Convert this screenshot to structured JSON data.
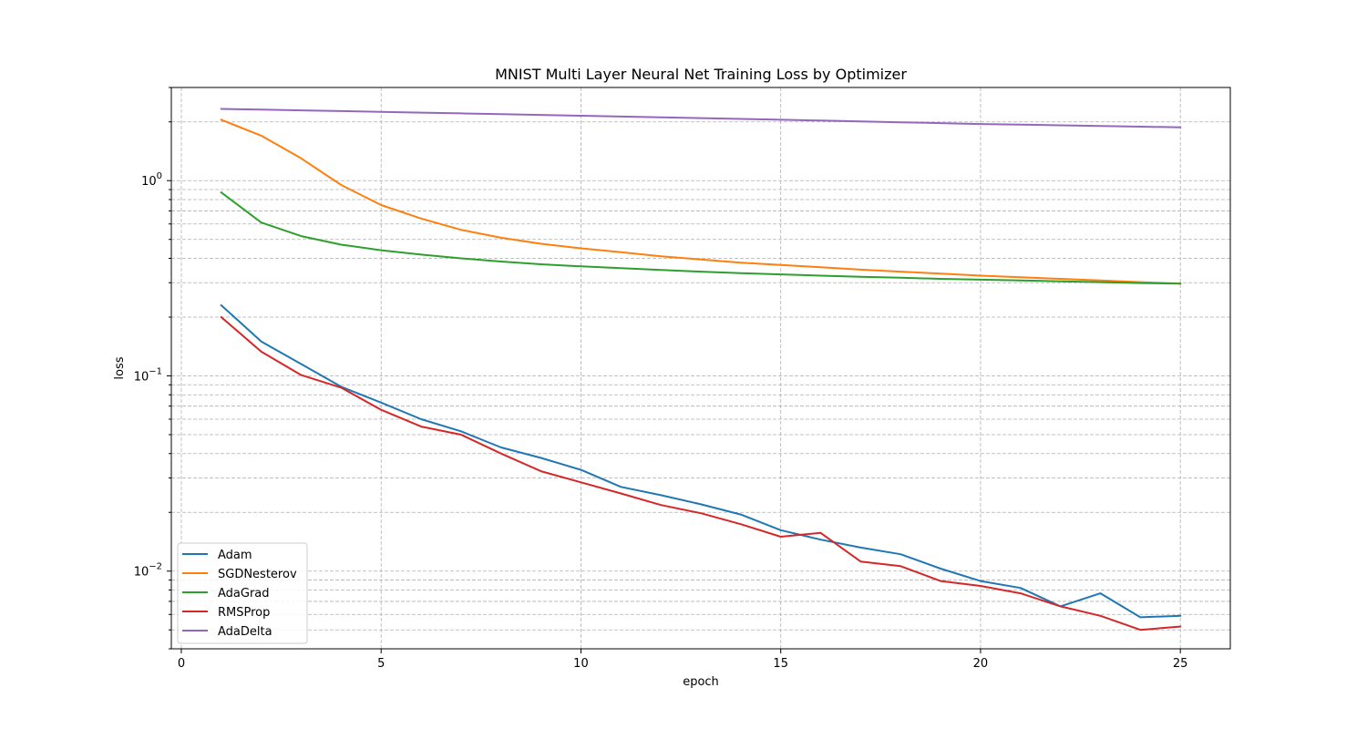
{
  "chart_data": {
    "type": "line",
    "title": "MNIST Multi Layer Neural Net Training Loss by Optimizer",
    "xlabel": "epoch",
    "ylabel": "loss",
    "yscale": "log",
    "xlim": [
      -0.25,
      26.25
    ],
    "ylim": [
      0.004,
      3.0
    ],
    "xticks": [
      0,
      5,
      10,
      15,
      20,
      25
    ],
    "yticks": [
      {
        "value": 0.01,
        "base": "10",
        "exp": "−2"
      },
      {
        "value": 0.1,
        "base": "10",
        "exp": "−1"
      },
      {
        "value": 1,
        "base": "10",
        "exp": "0"
      }
    ],
    "grid": true,
    "legend_position": "lower-left",
    "x": [
      1,
      2,
      3,
      4,
      5,
      6,
      7,
      8,
      9,
      10,
      11,
      12,
      13,
      14,
      15,
      16,
      17,
      18,
      19,
      20,
      21,
      22,
      23,
      24,
      25
    ],
    "series": [
      {
        "name": "Adam",
        "color": "#1f77b4",
        "values": [
          0.23,
          0.15,
          0.115,
          0.088,
          0.073,
          0.06,
          0.052,
          0.043,
          0.038,
          0.033,
          0.027,
          0.0245,
          0.022,
          0.0195,
          0.0162,
          0.0145,
          0.0132,
          0.0122,
          0.0103,
          0.0089,
          0.0082,
          0.0066,
          0.0077,
          0.0058,
          0.0059
        ]
      },
      {
        "name": "SGDNesterov",
        "color": "#ff7f0e",
        "values": [
          2.05,
          1.7,
          1.3,
          0.95,
          0.75,
          0.64,
          0.56,
          0.51,
          0.475,
          0.45,
          0.43,
          0.41,
          0.395,
          0.38,
          0.37,
          0.36,
          0.35,
          0.342,
          0.334,
          0.326,
          0.32,
          0.314,
          0.308,
          0.302,
          0.297
        ]
      },
      {
        "name": "AdaGrad",
        "color": "#2ca02c",
        "values": [
          0.87,
          0.61,
          0.52,
          0.47,
          0.44,
          0.418,
          0.4,
          0.385,
          0.373,
          0.364,
          0.356,
          0.349,
          0.342,
          0.336,
          0.331,
          0.326,
          0.322,
          0.318,
          0.314,
          0.311,
          0.308,
          0.305,
          0.302,
          0.299,
          0.297
        ]
      },
      {
        "name": "RMSProp",
        "color": "#d62728",
        "values": [
          0.2,
          0.133,
          0.101,
          0.087,
          0.067,
          0.055,
          0.05,
          0.04,
          0.0325,
          0.0285,
          0.025,
          0.0218,
          0.0198,
          0.0174,
          0.015,
          0.0157,
          0.0112,
          0.0106,
          0.0089,
          0.0084,
          0.0077,
          0.0066,
          0.0059,
          0.005,
          0.0052
        ]
      },
      {
        "name": "AdaDelta",
        "color": "#9467bd",
        "values": [
          2.33,
          2.31,
          2.29,
          2.27,
          2.25,
          2.23,
          2.21,
          2.19,
          2.17,
          2.15,
          2.13,
          2.11,
          2.09,
          2.07,
          2.05,
          2.03,
          2.01,
          1.99,
          1.97,
          1.95,
          1.935,
          1.92,
          1.905,
          1.89,
          1.875
        ]
      }
    ]
  }
}
